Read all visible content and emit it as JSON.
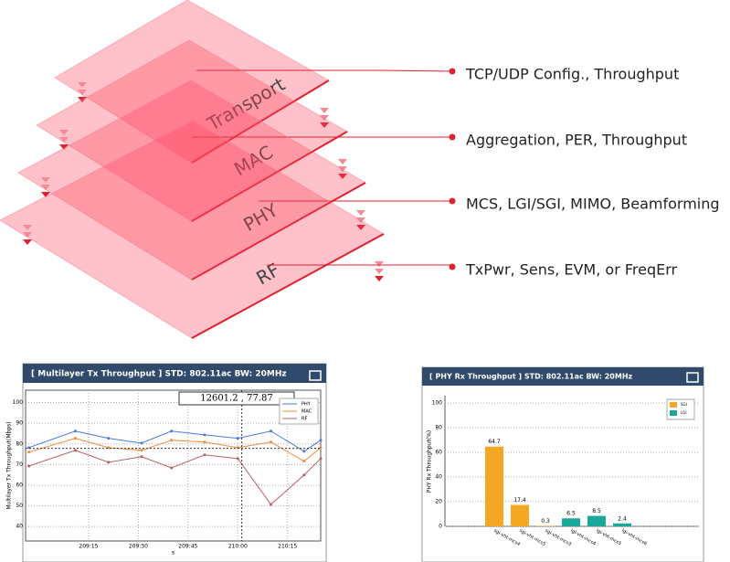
{
  "diagram": {
    "layers": [
      {
        "name": "Transport",
        "description": "TCP/UDP Config., Throughput"
      },
      {
        "name": "MAC",
        "description": "Aggregation, PER, Throughput"
      },
      {
        "name": "PHY",
        "description": "MCS, LGI/SGI, MIMO, Beamforming"
      },
      {
        "name": "RF",
        "description": "TxPwr, Sens, EVM, or FreqErr"
      }
    ]
  },
  "chart_data": [
    {
      "type": "line",
      "title": "[ Multilayer Tx Throughput ] STD: 802.11ac  BW: 20MHz",
      "ylabel": "Multilayer Tx Throughput(Mbps)",
      "xlabel": "s",
      "x": [
        12537,
        12551,
        12561,
        12571,
        12580,
        12590,
        12600,
        12610,
        12620,
        12625
      ],
      "xlim": [
        12536,
        12625
      ],
      "xticks": [
        {
          "value": 12555,
          "label": "209:15"
        },
        {
          "value": 12570,
          "label": "209:30"
        },
        {
          "value": 12585,
          "label": "209:45"
        },
        {
          "value": 12600,
          "label": "210:00"
        },
        {
          "value": 12615,
          "label": "210:15"
        }
      ],
      "ylim": [
        33,
        106
      ],
      "yticks": [
        40,
        50,
        60,
        70,
        80,
        90,
        100
      ],
      "grid": true,
      "legend": "upper right",
      "cursor": {
        "x": 12601.2,
        "y": 77.87,
        "label": "12601.2 , 77.87"
      },
      "series": [
        {
          "name": "PHY",
          "color": "#4a78e0",
          "values": [
            78.2,
            86.2,
            82.7,
            80.4,
            86.2,
            84.4,
            82.7,
            86.2,
            76.4,
            81.8
          ]
        },
        {
          "name": "MAC",
          "color": "#ef8a3a",
          "values": [
            76,
            82.7,
            78.2,
            76.9,
            81.8,
            80.9,
            78.2,
            80.9,
            71.6,
            78.2
          ]
        },
        {
          "name": "RF",
          "color": "#b86060",
          "values": [
            69.3,
            76.9,
            71.1,
            73.8,
            68.4,
            74.7,
            72.9,
            50.7,
            64.9,
            72.9
          ]
        }
      ]
    },
    {
      "type": "bar",
      "title": "[ PHY Rx Throughput ] STD: 802.11ac  BW: 20MHz",
      "ylabel": "PHY Rx Throughput(%)",
      "categories": [
        "sgi-vht-mcs4",
        "sgi-vht-mcs5",
        "sgi-vht-mcs3",
        "lgi-vht-mcs4",
        "lgi-vht-mcs5",
        "lgi-vht-mcs6"
      ],
      "ylim": [
        0,
        106
      ],
      "yticks": [
        0,
        20,
        40,
        60,
        80,
        100
      ],
      "grid": true,
      "legend": "upper right",
      "series": [
        {
          "name": "SGI",
          "color": "#f5a623",
          "values": [
            64.7,
            17.4,
            0.3,
            null,
            null,
            null
          ]
        },
        {
          "name": "LGI",
          "color": "#1aa89a",
          "values": [
            null,
            null,
            null,
            6.5,
            8.5,
            2.4
          ]
        }
      ]
    }
  ]
}
